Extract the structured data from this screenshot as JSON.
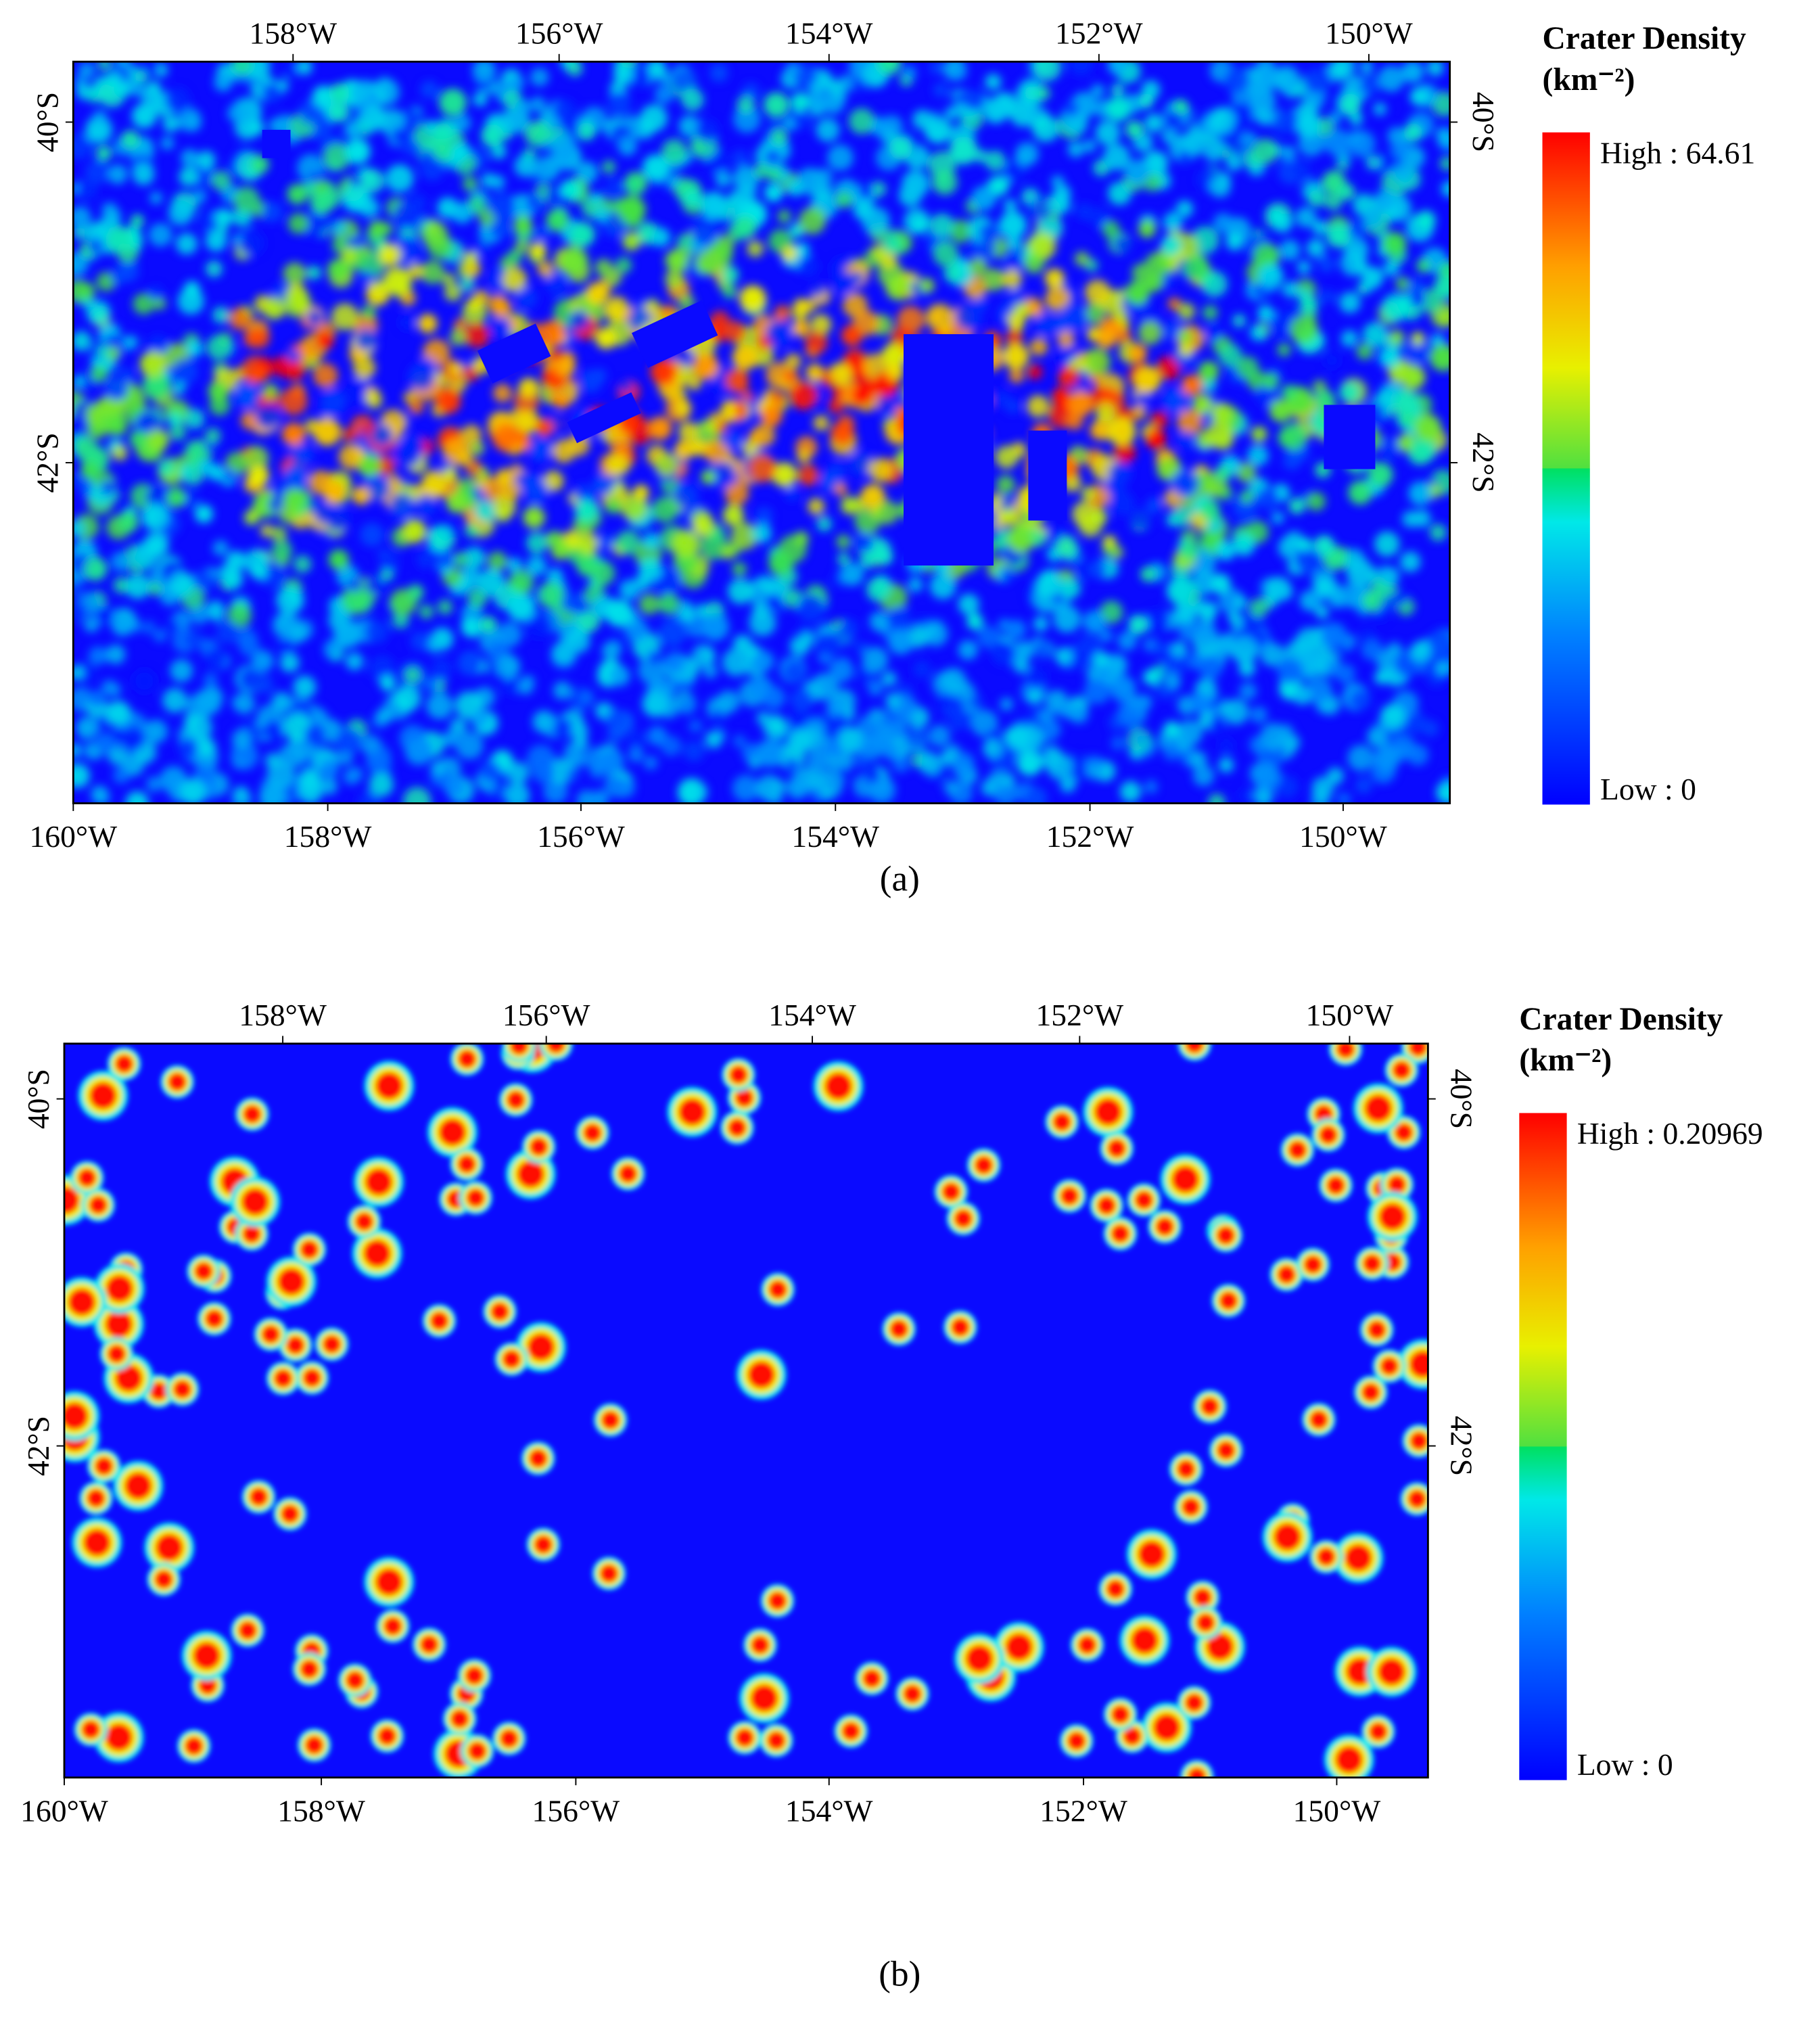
{
  "panels": [
    {
      "top_ticks": [
        "158°W",
        "156°W",
        "154°W",
        "152°W",
        "150°W"
      ],
      "bottom_ticks": [
        "160°W",
        "158°W",
        "156°W",
        "154°W",
        "152°W",
        "150°W"
      ],
      "left_ticks": [
        "40°S",
        "42°S"
      ],
      "right_ticks": [
        "40°S",
        "42°S"
      ],
      "legend_title": "Crater Density",
      "legend_unit": "(km⁻²)",
      "high_label": "High : 64.61",
      "low_label": "Low : 0",
      "caption": "(a)"
    },
    {
      "top_ticks": [
        "158°W",
        "156°W",
        "154°W",
        "152°W",
        "150°W"
      ],
      "bottom_ticks": [
        "160°W",
        "158°W",
        "156°W",
        "154°W",
        "152°W",
        "150°W"
      ],
      "left_ticks": [
        "40°S",
        "42°S"
      ],
      "right_ticks": [
        "40°S",
        "42°S"
      ],
      "legend_title": "Crater Density",
      "legend_unit": "(km⁻²)",
      "high_label": "High : 0.20969",
      "low_label": "Low : 0",
      "caption": "(b)"
    }
  ]
}
